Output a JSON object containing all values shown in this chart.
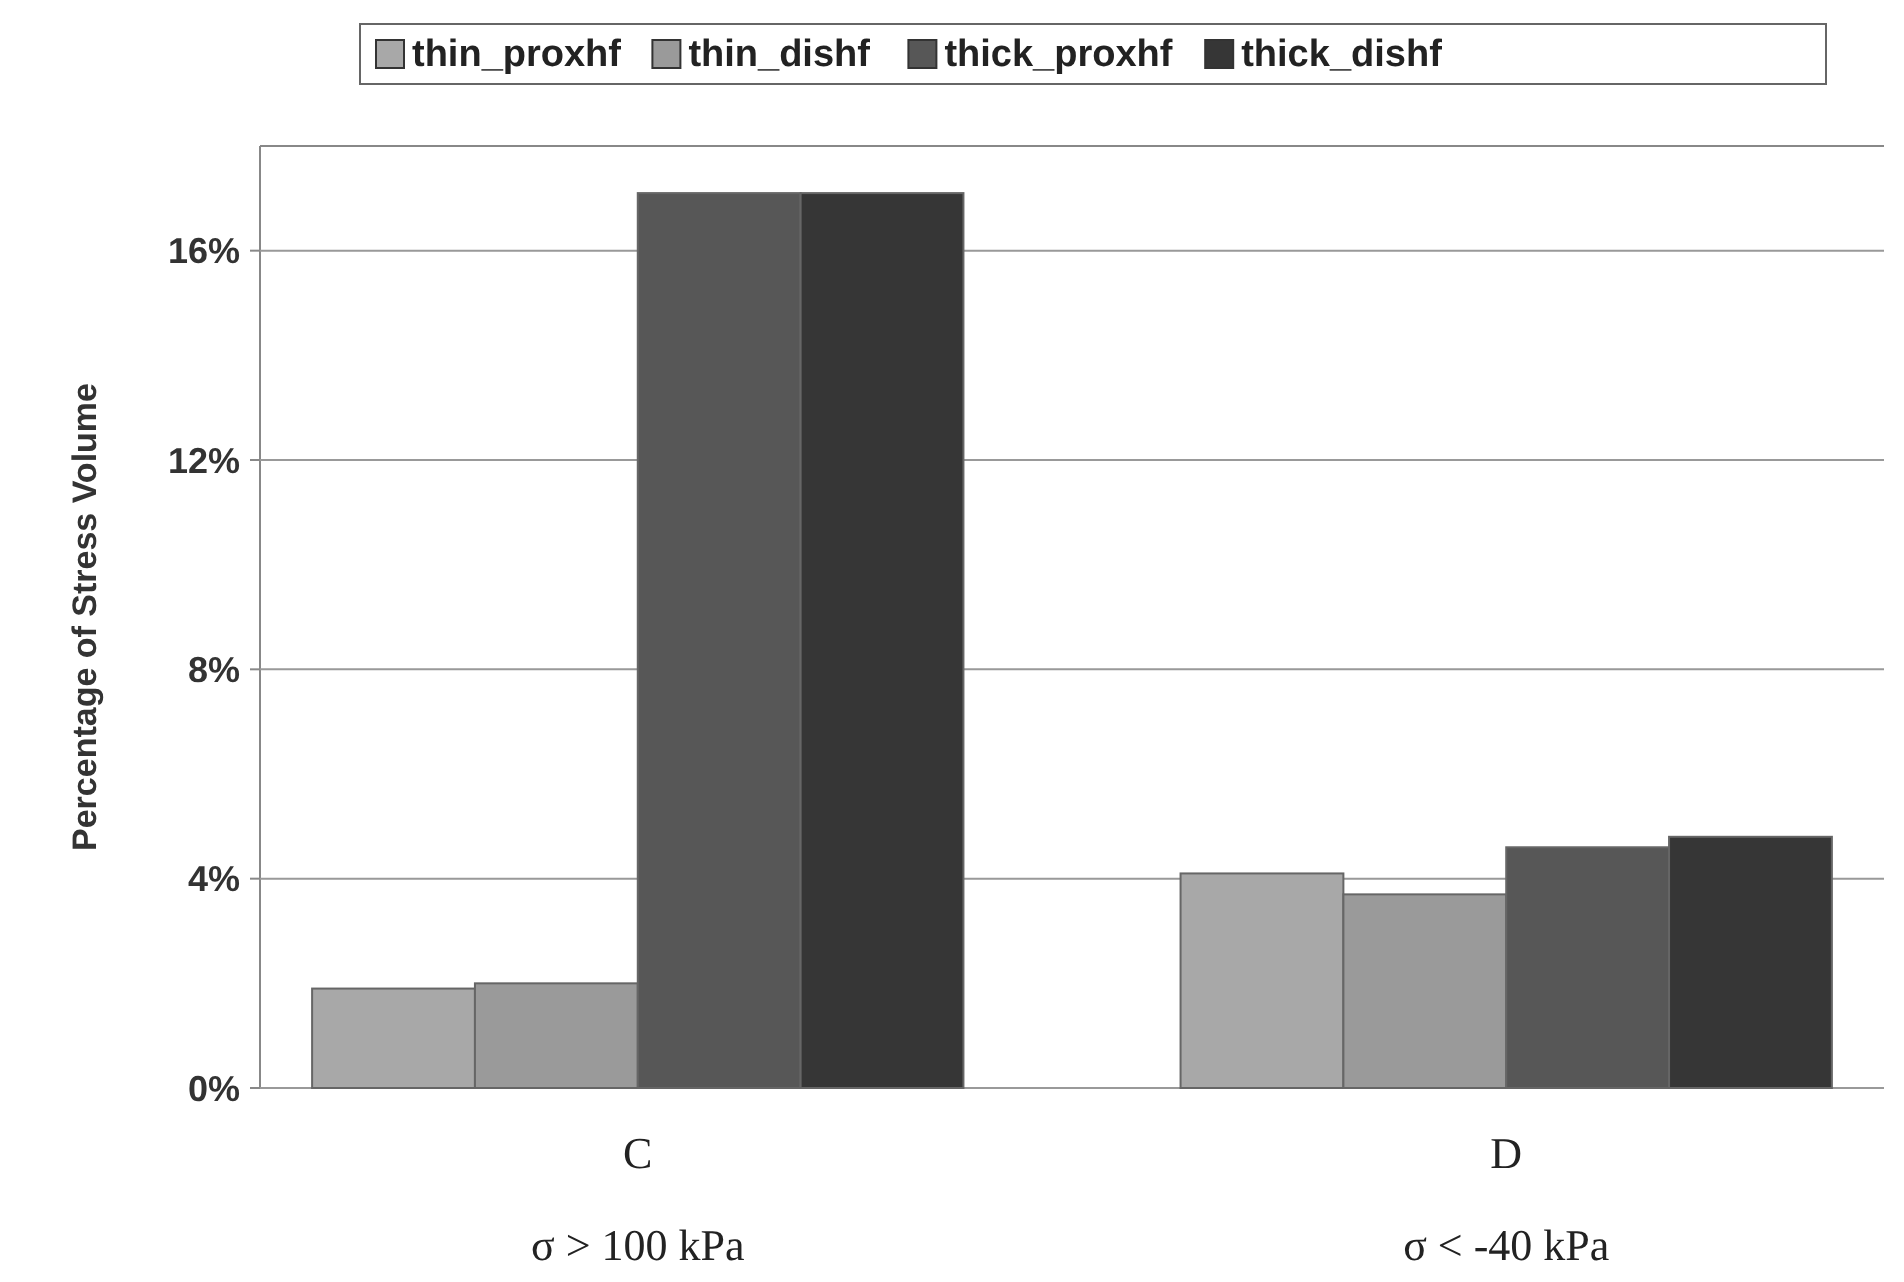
{
  "chart_data": {
    "type": "bar",
    "ylabel": "Percentage of Stress Volume",
    "categories": [
      "C\nσ > 100 kPa",
      "D\nσ < -40 kPa"
    ],
    "series": [
      {
        "name": "thin_proxhf",
        "color": "#a8a8a8",
        "values": [
          1.9,
          4.1
        ]
      },
      {
        "name": "thin_dishf",
        "color": "#9a9a9a",
        "values": [
          2.0,
          3.7
        ]
      },
      {
        "name": "thick_proxhf",
        "color": "#575757",
        "values": [
          17.1,
          4.6
        ]
      },
      {
        "name": "thick_dishf",
        "color": "#363636",
        "values": [
          17.1,
          4.8
        ]
      }
    ],
    "ylim": [
      0,
      18
    ],
    "yticks": [
      {
        "value": 0,
        "label": "0%"
      },
      {
        "value": 4,
        "label": "4%"
      },
      {
        "value": 8,
        "label": "8%"
      },
      {
        "value": 12,
        "label": "12%"
      },
      {
        "value": 16,
        "label": "16%"
      }
    ],
    "grid": "y",
    "legend": "top"
  }
}
